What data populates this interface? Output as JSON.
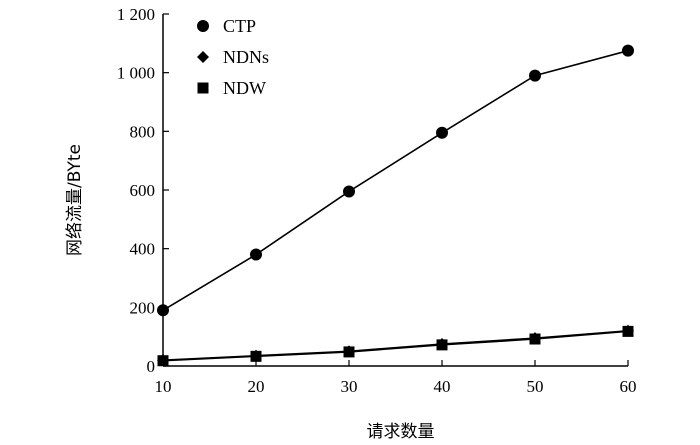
{
  "chart_data": {
    "type": "line",
    "title": "",
    "xlabel": "请求数量",
    "ylabel": "网络流量/BYte",
    "x": [
      10,
      20,
      30,
      40,
      50,
      60
    ],
    "xticks": [
      10,
      20,
      30,
      40,
      50,
      60
    ],
    "xtick_labels": [
      "10",
      "20",
      "30",
      "40",
      "50",
      "60"
    ],
    "yticks": [
      0,
      200,
      400,
      600,
      800,
      1000,
      1200
    ],
    "ytick_labels": [
      "0",
      "200",
      "400",
      "600",
      "800",
      "1 000",
      "1 200"
    ],
    "xlim": [
      10,
      60
    ],
    "ylim": [
      0,
      1200
    ],
    "grid": false,
    "legend_position": "top-left",
    "series": [
      {
        "name": "CTP",
        "marker": "circle",
        "values": [
          190,
          380,
          595,
          795,
          990,
          1075
        ]
      },
      {
        "name": "NDNs",
        "marker": "diamond",
        "values": [
          20,
          35,
          50,
          75,
          95,
          120
        ]
      },
      {
        "name": "NDW",
        "marker": "square",
        "values": [
          18,
          33,
          48,
          72,
          92,
          118
        ]
      }
    ]
  }
}
